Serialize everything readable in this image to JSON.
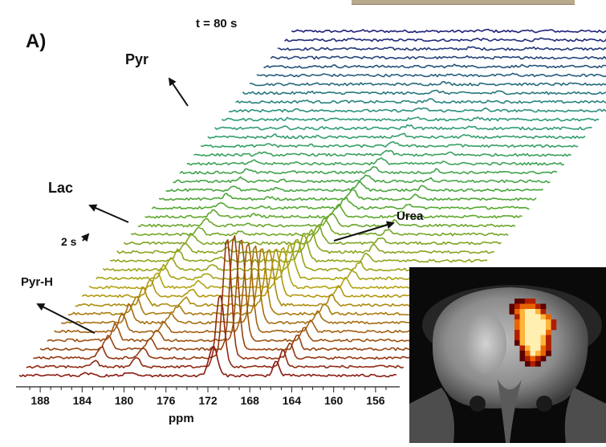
{
  "panel_label": "A)",
  "time_label": "t = 80 s",
  "start_label": "2 s",
  "peaks": {
    "pyr": "Pyr",
    "lac": "Lac",
    "urea": "Urea",
    "pyr_h": "Pyr-H"
  },
  "colors": {
    "first_trace": "#8b1a10",
    "mid_early": "#b5a20e",
    "mid": "#4ea832",
    "mid_late": "#2a9a7e",
    "last_trace": "#1f1d78",
    "overlay_hot": "#ffe89a",
    "overlay_cold": "#7a0000"
  },
  "chart_data": {
    "type": "line",
    "subtype": "stacked 3D spectra (waterfall)",
    "xlabel": "ppm",
    "ylabel": "",
    "x_ticks": [
      188,
      184,
      180,
      176,
      172,
      168,
      164,
      160,
      156
    ],
    "xlim": [
      190,
      154
    ],
    "x_reversed": true,
    "time_range_s": [
      2,
      80
    ],
    "n_spectra": 40,
    "peaks": [
      {
        "name": "Pyr",
        "ppm": 171.5
      },
      {
        "name": "Lac",
        "ppm": 183.5
      },
      {
        "name": "Urea",
        "ppm": 165.5
      },
      {
        "name": "Pyr-H",
        "ppm": 179.5
      }
    ],
    "series": [
      {
        "ppm": 171.5,
        "relative_height": [
          0.25,
          0.6,
          1.0,
          0.95,
          0.85,
          0.75,
          0.64,
          0.55,
          0.47,
          0.4,
          0.34,
          0.29,
          0.25,
          0.21,
          0.18,
          0.15,
          0.13,
          0.11,
          0.095,
          0.08,
          0.07,
          0.06,
          0.05,
          0.045,
          0.04,
          0.035,
          0.03,
          0.027,
          0.024,
          0.022,
          0.02,
          0.018,
          0.016,
          0.015,
          0.014,
          0.013,
          0.012,
          0.011,
          0.01,
          0.01
        ]
      },
      {
        "ppm": 183.5,
        "relative_height": [
          0.02,
          0.05,
          0.09,
          0.12,
          0.14,
          0.15,
          0.15,
          0.145,
          0.14,
          0.13,
          0.12,
          0.11,
          0.1,
          0.09,
          0.08,
          0.07,
          0.06,
          0.055,
          0.05,
          0.045,
          0.04,
          0.035,
          0.03,
          0.027,
          0.024,
          0.021,
          0.019,
          0.017,
          0.015,
          0.013,
          0.012,
          0.011,
          0.01,
          0.009,
          0.008,
          0.007,
          0.007,
          0.006,
          0.006,
          0.005
        ]
      },
      {
        "ppm": 165.5,
        "relative_height": [
          0.12,
          0.14,
          0.13,
          0.12,
          0.11,
          0.1,
          0.095,
          0.09,
          0.085,
          0.08,
          0.075,
          0.07,
          0.065,
          0.06,
          0.055,
          0.05,
          0.046,
          0.042,
          0.038,
          0.035,
          0.032,
          0.029,
          0.026,
          0.024,
          0.022,
          0.02,
          0.018,
          0.016,
          0.015,
          0.014,
          0.013,
          0.012,
          0.011,
          0.01,
          0.01,
          0.009,
          0.009,
          0.008,
          0.008,
          0.008
        ]
      },
      {
        "ppm": 179.5,
        "relative_height": [
          0.03,
          0.08,
          0.09,
          0.085,
          0.08,
          0.075,
          0.07,
          0.065,
          0.06,
          0.055,
          0.05,
          0.045,
          0.04,
          0.035,
          0.03,
          0.027,
          0.024,
          0.021,
          0.018,
          0.016,
          0.014,
          0.012,
          0.011,
          0.01,
          0.009,
          0.008,
          0.007,
          0.006,
          0.006,
          0.005,
          0.005,
          0.004,
          0.004,
          0.004,
          0.003,
          0.003,
          0.003,
          0.003,
          0.002,
          0.002
        ]
      }
    ]
  }
}
